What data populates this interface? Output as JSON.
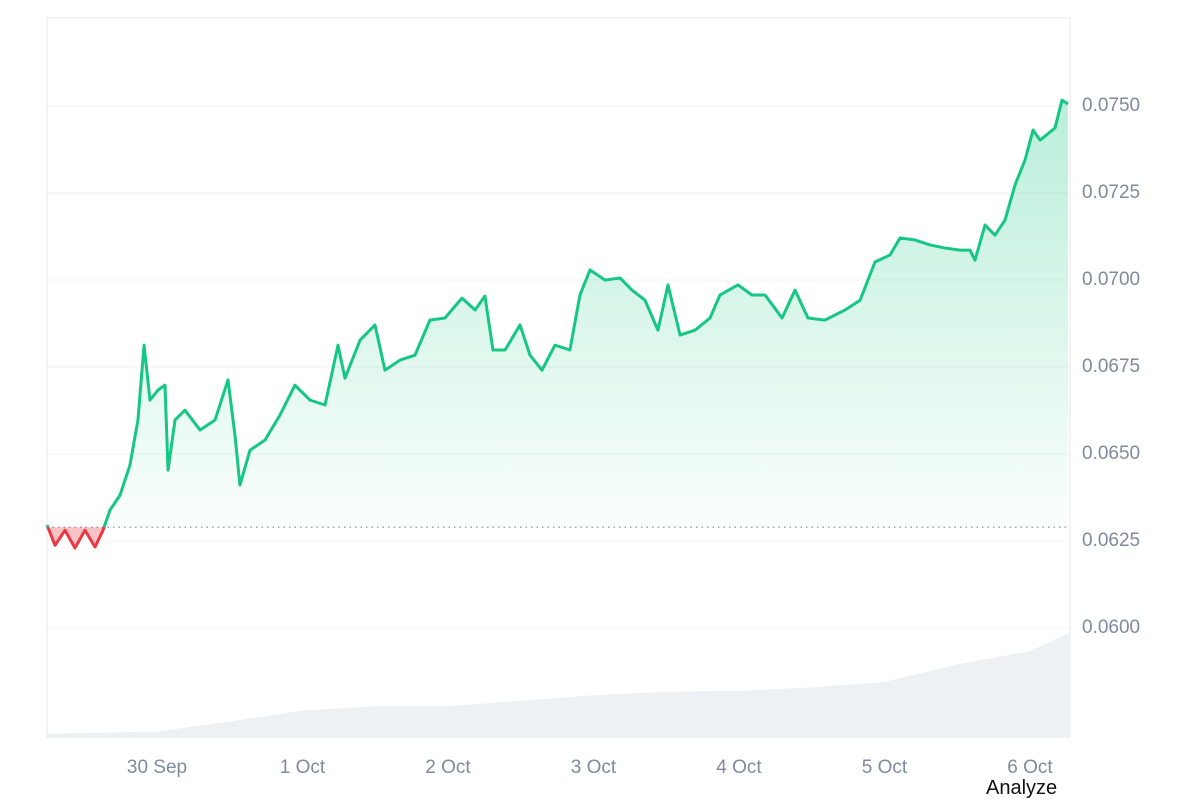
{
  "chart_data": {
    "type": "line",
    "color": "#16c784",
    "down_color": "#ea3943",
    "baseline": 0.0629,
    "x": [
      -0.756,
      -0.701,
      -0.632,
      -0.564,
      -0.495,
      -0.426,
      -0.371,
      -0.323,
      -0.254,
      -0.186,
      -0.131,
      -0.089,
      -0.048,
      0.007,
      0.055,
      0.076,
      0.124,
      0.192,
      0.296,
      0.399,
      0.488,
      0.536,
      0.57,
      0.639,
      0.742,
      0.845,
      0.948,
      1.052,
      1.155,
      1.244,
      1.292,
      1.395,
      1.498,
      1.567,
      1.67,
      1.773,
      1.876,
      1.979,
      2.096,
      2.186,
      2.254,
      2.309,
      2.392,
      2.495,
      2.564,
      2.646,
      2.735,
      2.838,
      2.907,
      2.976,
      3.079,
      3.182,
      3.265,
      3.354,
      3.443,
      3.512,
      3.595,
      3.698,
      3.801,
      3.869,
      3.993,
      4.089,
      4.179,
      4.296,
      4.385,
      4.474,
      4.591,
      4.729,
      4.832,
      4.935,
      5.038,
      5.107,
      5.21,
      5.313,
      5.416,
      5.519,
      5.588,
      5.622,
      5.691,
      5.759,
      5.828,
      5.897,
      5.966,
      6.021,
      6.069,
      6.172,
      6.22,
      6.261
    ],
    "values": [
      0.06296,
      0.06238,
      0.06281,
      0.0623,
      0.06281,
      0.06233,
      0.06281,
      0.06339,
      0.06382,
      0.06468,
      0.06598,
      0.06813,
      0.06655,
      0.06684,
      0.06698,
      0.06454,
      0.06598,
      0.06626,
      0.06569,
      0.06598,
      0.06713,
      0.06554,
      0.06411,
      0.06511,
      0.0654,
      0.06612,
      0.06698,
      0.06655,
      0.06641,
      0.06813,
      0.06718,
      0.06827,
      0.06871,
      0.06741,
      0.0677,
      0.06784,
      0.06885,
      0.06891,
      0.06948,
      0.06914,
      0.06954,
      0.06799,
      0.06799,
      0.06871,
      0.06784,
      0.06741,
      0.06813,
      0.06799,
      0.06957,
      0.07029,
      0.07,
      0.07006,
      0.06971,
      0.06942,
      0.06856,
      0.06986,
      0.06842,
      0.06856,
      0.06891,
      0.06957,
      0.06986,
      0.06957,
      0.06957,
      0.06891,
      0.06971,
      0.06891,
      0.06885,
      0.06914,
      0.06942,
      0.07052,
      0.07072,
      0.07121,
      0.07115,
      0.07101,
      0.07092,
      0.07086,
      0.07086,
      0.07057,
      0.07158,
      0.07129,
      0.07172,
      0.07273,
      0.07345,
      0.07431,
      0.07402,
      0.07437,
      0.07517,
      0.07506
    ],
    "xlim": [
      -0.756,
      6.275
    ],
    "xticks": [
      {
        "value": 0,
        "label": "30 Sep"
      },
      {
        "value": 1,
        "label": "1 Oct"
      },
      {
        "value": 2,
        "label": "2 Oct"
      },
      {
        "value": 3,
        "label": "3 Oct"
      },
      {
        "value": 4,
        "label": "4 Oct"
      },
      {
        "value": 5,
        "label": "5 Oct"
      },
      {
        "value": 6,
        "label": "6 Oct"
      }
    ],
    "ylim": [
      0.05687,
      0.07753
    ],
    "yticks": [
      {
        "value": 0.06,
        "label": "0.0600"
      },
      {
        "value": 0.0625,
        "label": "0.0625"
      },
      {
        "value": 0.065,
        "label": "0.0650"
      },
      {
        "value": 0.0675,
        "label": "0.0675"
      },
      {
        "value": 0.07,
        "label": "0.0700"
      },
      {
        "value": 0.0725,
        "label": "0.0725"
      },
      {
        "value": 0.075,
        "label": "0.0750"
      }
    ],
    "grid": true,
    "volume": {
      "color": "#eef1f4",
      "ylim": [
        0,
        100
      ],
      "x": [
        -0.756,
        0,
        0.5,
        1,
        1.5,
        2,
        2.5,
        3,
        3.5,
        4,
        4.5,
        5,
        5.5,
        6,
        6.275
      ],
      "values": [
        3,
        5,
        14,
        24,
        28,
        28,
        33,
        38,
        41,
        42,
        45,
        50,
        66,
        78,
        95
      ]
    }
  },
  "analyze_label": "Analyze"
}
